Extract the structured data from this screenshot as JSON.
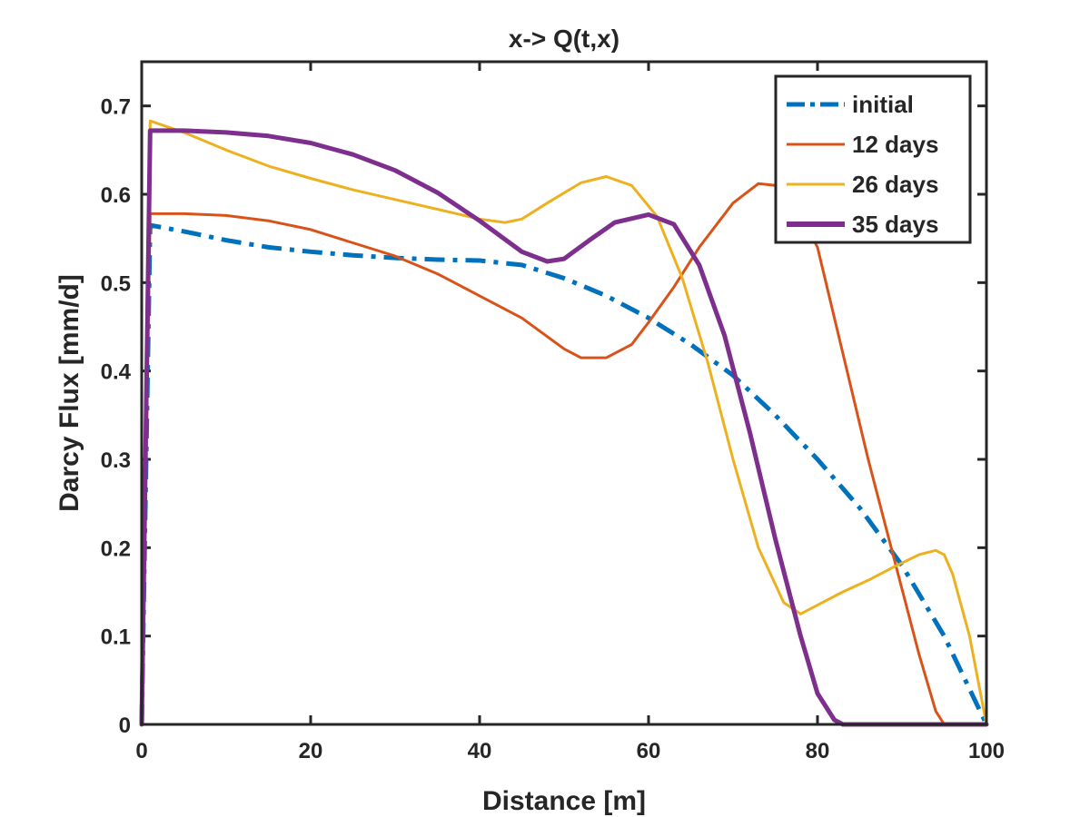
{
  "chart_data": {
    "type": "line",
    "title": "x-> Q(t,x)",
    "xlabel": "Distance [m]",
    "ylabel": "Darcy Flux [mm/d]",
    "xlim": [
      0,
      100
    ],
    "ylim": [
      0,
      0.75
    ],
    "xticks": [
      0,
      20,
      40,
      60,
      80,
      100
    ],
    "xtick_labels": [
      "0",
      "20",
      "40",
      "60",
      "80",
      "100"
    ],
    "yticks": [
      0,
      0.1,
      0.2,
      0.3,
      0.4,
      0.5,
      0.6,
      0.7
    ],
    "ytick_labels": [
      "0",
      "0.1",
      "0.2",
      "0.3",
      "0.4",
      "0.5",
      "0.6",
      "0.7"
    ],
    "grid": false,
    "legend_position": "top-right",
    "series": [
      {
        "name": "initial",
        "color": "#0072BD",
        "style": "dashdot",
        "x": [
          0,
          1,
          5,
          10,
          15,
          20,
          25,
          30,
          35,
          40,
          45,
          50,
          55,
          60,
          65,
          70,
          75,
          80,
          85,
          90,
          95,
          100
        ],
        "y": [
          0,
          0.565,
          0.558,
          0.548,
          0.54,
          0.535,
          0.531,
          0.528,
          0.526,
          0.525,
          0.52,
          0.505,
          0.485,
          0.46,
          0.43,
          0.395,
          0.35,
          0.3,
          0.245,
          0.18,
          0.1,
          0
        ]
      },
      {
        "name": "12 days",
        "color": "#D95319",
        "style": "solid",
        "x": [
          0,
          1,
          5,
          10,
          15,
          20,
          25,
          30,
          35,
          40,
          45,
          50,
          52,
          55,
          58,
          60,
          63,
          66,
          70,
          73,
          75,
          77,
          80,
          83,
          86,
          89,
          92,
          94,
          95,
          96,
          100
        ],
        "y": [
          0,
          0.578,
          0.578,
          0.576,
          0.57,
          0.56,
          0.545,
          0.53,
          0.51,
          0.485,
          0.46,
          0.425,
          0.415,
          0.415,
          0.43,
          0.455,
          0.495,
          0.54,
          0.59,
          0.612,
          0.61,
          0.595,
          0.54,
          0.42,
          0.3,
          0.19,
          0.08,
          0.015,
          0,
          0,
          0
        ]
      },
      {
        "name": "26 days",
        "color": "#EDB120",
        "style": "solid",
        "x": [
          0,
          1,
          5,
          10,
          15,
          20,
          25,
          30,
          35,
          40,
          43,
          45,
          48,
          52,
          55,
          58,
          61,
          64,
          67,
          70,
          73,
          76,
          78,
          80,
          83,
          86,
          89,
          92,
          94,
          95,
          96,
          98,
          100
        ],
        "y": [
          0,
          0.683,
          0.67,
          0.65,
          0.632,
          0.618,
          0.605,
          0.594,
          0.583,
          0.572,
          0.568,
          0.572,
          0.59,
          0.613,
          0.62,
          0.61,
          0.575,
          0.505,
          0.41,
          0.3,
          0.2,
          0.138,
          0.125,
          0.135,
          0.15,
          0.163,
          0.178,
          0.192,
          0.197,
          0.192,
          0.17,
          0.1,
          0
        ]
      },
      {
        "name": "35 days",
        "color": "#7E2F8E",
        "style": "solid",
        "x": [
          0,
          1,
          5,
          10,
          15,
          20,
          25,
          30,
          35,
          40,
          45,
          48,
          50,
          53,
          56,
          60,
          63,
          66,
          69,
          72,
          75,
          78,
          80,
          82,
          83,
          85,
          90,
          95,
          100
        ],
        "y": [
          0,
          0.672,
          0.672,
          0.67,
          0.666,
          0.658,
          0.645,
          0.627,
          0.602,
          0.57,
          0.535,
          0.524,
          0.527,
          0.548,
          0.568,
          0.577,
          0.566,
          0.52,
          0.44,
          0.33,
          0.21,
          0.1,
          0.035,
          0.005,
          0,
          0,
          0,
          0,
          0
        ]
      }
    ]
  }
}
